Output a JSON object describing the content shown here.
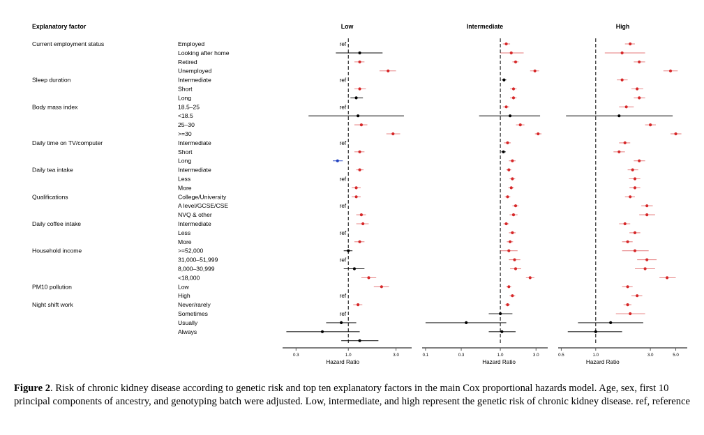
{
  "caption": {
    "label": "Figure 2",
    "text": ". Risk of chronic kidney disease according to genetic risk and top ten explanatory factors in the main Cox proportional hazards model. Age, sex, first 10 principal components of ancestry, and genotyping batch were adjusted. Low, intermediate, and high represent the genetic risk of chronic kidney disease. ref, reference"
  },
  "chart_data": {
    "type": "forest",
    "header": "Explanatory factor",
    "ref_label": "ref",
    "xlabel": "Hazard Ratio",
    "reference_value": 1.0,
    "x_scale": "log",
    "colors": {
      "significant_increase": "#d62728",
      "significant_decrease": "#1f3fbf",
      "not_significant": "#000000"
    },
    "groups": [
      {
        "factor": "Current employment status",
        "levels": [
          "Employed",
          "Looking after home",
          "Retired",
          "Unemployed"
        ]
      },
      {
        "factor": "Sleep duration",
        "levels": [
          "Intermediate",
          "Short",
          "Long"
        ]
      },
      {
        "factor": "Body mass index",
        "levels": [
          "18.5–25",
          "<18.5",
          "25–30",
          ">=30"
        ]
      },
      {
        "factor": "Daily time on TV/computer",
        "levels": [
          "Intermediate",
          "Short",
          "Long"
        ]
      },
      {
        "factor": "Daily tea intake",
        "levels": [
          "Intermediate",
          "Less",
          "More"
        ]
      },
      {
        "factor": "Qualifications",
        "levels": [
          "College/University",
          "A level/GCSE/CSE",
          "NVQ & other"
        ]
      },
      {
        "factor": "Daily coffee intake",
        "levels": [
          "Intermediate",
          "Less",
          "More"
        ]
      },
      {
        "factor": "Household income",
        "levels": [
          ">=52,000",
          "31,000–51,999",
          "8,000–30,999",
          "<18,000"
        ]
      },
      {
        "factor": "PM10 pollution",
        "levels": [
          "Low",
          "High"
        ]
      },
      {
        "factor": "Night shift work",
        "levels": [
          "Never/rarely",
          "Sometimes",
          "Usually",
          "Always"
        ]
      }
    ],
    "panels": [
      {
        "title": "Low",
        "xlim": [
          0.22,
          4.3
        ],
        "ticks": [
          0.3,
          1.0,
          3.0
        ],
        "tick_labels": [
          "0.3",
          "1.0",
          "3.0"
        ],
        "rows": [
          {
            "ref": true
          },
          {
            "hr": 1.3,
            "lo": 0.75,
            "hi": 2.2,
            "sig": "none"
          },
          {
            "hr": 1.3,
            "lo": 1.15,
            "hi": 1.45,
            "sig": "up"
          },
          {
            "hr": 2.5,
            "lo": 2.05,
            "hi": 3.0,
            "sig": "up"
          },
          {
            "ref": true
          },
          {
            "hr": 1.3,
            "lo": 1.15,
            "hi": 1.5,
            "sig": "up"
          },
          {
            "hr": 1.2,
            "lo": 1.05,
            "hi": 1.4,
            "sig": "none"
          },
          {
            "ref": true
          },
          {
            "hr": 1.25,
            "lo": 0.4,
            "hi": 3.6,
            "sig": "none"
          },
          {
            "hr": 1.35,
            "lo": 1.15,
            "hi": 1.55,
            "sig": "up"
          },
          {
            "hr": 2.8,
            "lo": 2.4,
            "hi": 3.3,
            "sig": "up"
          },
          {
            "ref": true
          },
          {
            "hr": 1.3,
            "lo": 1.15,
            "hi": 1.45,
            "sig": "up"
          },
          {
            "hr": 0.78,
            "lo": 0.7,
            "hi": 0.88,
            "sig": "down"
          },
          {
            "hr": 1.3,
            "lo": 1.2,
            "hi": 1.42,
            "sig": "up"
          },
          {
            "ref": true
          },
          {
            "hr": 1.2,
            "lo": 1.08,
            "hi": 1.33,
            "sig": "up"
          },
          {
            "hr": 1.2,
            "lo": 1.08,
            "hi": 1.33,
            "sig": "up"
          },
          {
            "ref": true
          },
          {
            "hr": 1.35,
            "lo": 1.2,
            "hi": 1.5,
            "sig": "up"
          },
          {
            "hr": 1.4,
            "lo": 1.2,
            "hi": 1.6,
            "sig": "up"
          },
          {
            "ref": true
          },
          {
            "hr": 1.3,
            "lo": 1.15,
            "hi": 1.45,
            "sig": "up"
          },
          {
            "hr": 1.0,
            "lo": 0.9,
            "hi": 1.1,
            "sig": "none"
          },
          {
            "ref": true
          },
          {
            "hr": 1.15,
            "lo": 0.9,
            "hi": 1.45,
            "sig": "none"
          },
          {
            "hr": 1.6,
            "lo": 1.35,
            "hi": 1.9,
            "sig": "up"
          },
          {
            "hr": 2.15,
            "lo": 1.8,
            "hi": 2.55,
            "sig": "up"
          },
          {
            "ref": true
          },
          {
            "hr": 1.25,
            "lo": 1.12,
            "hi": 1.38,
            "sig": "up"
          },
          {
            "ref": true
          },
          {
            "hr": 0.85,
            "lo": 0.6,
            "hi": 1.2,
            "sig": "none"
          },
          {
            "hr": 0.55,
            "lo": 0.24,
            "hi": 1.3,
            "sig": "none"
          },
          {
            "hr": 1.3,
            "lo": 0.85,
            "hi": 2.0,
            "sig": "none"
          }
        ]
      },
      {
        "title": "Intermediate",
        "xlim": [
          0.09,
          4.3
        ],
        "ticks": [
          0.1,
          0.3,
          1.0,
          3.0
        ],
        "tick_labels": [
          "0.1",
          "0.3",
          "1.0",
          "3.0"
        ],
        "rows": [
          {
            "hr": 1.2,
            "lo": 1.08,
            "hi": 1.35,
            "sig": "up"
          },
          {
            "hr": 1.4,
            "lo": 1.0,
            "hi": 2.05,
            "sig": "up"
          },
          {
            "hr": 1.6,
            "lo": 1.45,
            "hi": 1.75,
            "sig": "up"
          },
          {
            "hr": 2.9,
            "lo": 2.5,
            "hi": 3.3,
            "sig": "up"
          },
          {
            "hr": 1.12,
            "lo": 1.05,
            "hi": 1.2,
            "sig": "none"
          },
          {
            "hr": 1.5,
            "lo": 1.35,
            "hi": 1.65,
            "sig": "up"
          },
          {
            "hr": 1.5,
            "lo": 1.35,
            "hi": 1.65,
            "sig": "up"
          },
          {
            "hr": 1.2,
            "lo": 1.08,
            "hi": 1.32,
            "sig": "up"
          },
          {
            "hr": 1.35,
            "lo": 0.52,
            "hi": 3.4,
            "sig": "none"
          },
          {
            "hr": 1.85,
            "lo": 1.62,
            "hi": 2.1,
            "sig": "up"
          },
          {
            "hr": 3.2,
            "lo": 2.9,
            "hi": 3.55,
            "sig": "up"
          },
          {
            "hr": 1.25,
            "lo": 1.12,
            "hi": 1.38,
            "sig": "up"
          },
          {
            "hr": 1.1,
            "lo": 1.03,
            "hi": 1.18,
            "sig": "none"
          },
          {
            "hr": 1.45,
            "lo": 1.3,
            "hi": 1.6,
            "sig": "up"
          },
          {
            "hr": 1.3,
            "lo": 1.2,
            "hi": 1.4,
            "sig": "up"
          },
          {
            "hr": 1.45,
            "lo": 1.33,
            "hi": 1.58,
            "sig": "up"
          },
          {
            "hr": 1.4,
            "lo": 1.28,
            "hi": 1.52,
            "sig": "up"
          },
          {
            "hr": 1.25,
            "lo": 1.15,
            "hi": 1.36,
            "sig": "up"
          },
          {
            "hr": 1.6,
            "lo": 1.45,
            "hi": 1.75,
            "sig": "up"
          },
          {
            "hr": 1.5,
            "lo": 1.33,
            "hi": 1.7,
            "sig": "up"
          },
          {
            "hr": 1.2,
            "lo": 1.1,
            "hi": 1.3,
            "sig": "up"
          },
          {
            "hr": 1.45,
            "lo": 1.3,
            "hi": 1.6,
            "sig": "up"
          },
          {
            "hr": 1.35,
            "lo": 1.22,
            "hi": 1.48,
            "sig": "up"
          },
          {
            "hr": 1.3,
            "lo": 1.0,
            "hi": 1.7,
            "sig": "up"
          },
          {
            "hr": 1.55,
            "lo": 1.3,
            "hi": 1.85,
            "sig": "up"
          },
          {
            "hr": 1.6,
            "lo": 1.35,
            "hi": 1.9,
            "sig": "up"
          },
          {
            "hr": 2.5,
            "lo": 2.2,
            "hi": 2.85,
            "sig": "up"
          },
          {
            "hr": 1.3,
            "lo": 1.2,
            "hi": 1.4,
            "sig": "up"
          },
          {
            "hr": 1.45,
            "lo": 1.33,
            "hi": 1.58,
            "sig": "up"
          },
          {
            "hr": 1.25,
            "lo": 1.15,
            "hi": 1.35,
            "sig": "up"
          },
          {
            "hr": 1.0,
            "lo": 0.7,
            "hi": 1.45,
            "sig": "none"
          },
          {
            "hr": 0.35,
            "lo": 0.1,
            "hi": 1.2,
            "sig": "none"
          },
          {
            "hr": 1.05,
            "lo": 0.7,
            "hi": 1.6,
            "sig": "none"
          }
        ]
      },
      {
        "title": "High",
        "xlim": [
          0.47,
          6.3
        ],
        "ticks": [
          0.5,
          1.0,
          3.0,
          5.0
        ],
        "tick_labels": [
          "0.5",
          "1.0",
          "3.0",
          "5.0"
        ],
        "rows": [
          {
            "hr": 2.0,
            "lo": 1.8,
            "hi": 2.2,
            "sig": "up"
          },
          {
            "hr": 1.7,
            "lo": 1.2,
            "hi": 2.7,
            "sig": "up"
          },
          {
            "hr": 2.4,
            "lo": 2.15,
            "hi": 2.7,
            "sig": "up"
          },
          {
            "hr": 4.5,
            "lo": 3.9,
            "hi": 5.2,
            "sig": "up"
          },
          {
            "hr": 1.7,
            "lo": 1.53,
            "hi": 1.9,
            "sig": "up"
          },
          {
            "hr": 2.3,
            "lo": 2.05,
            "hi": 2.6,
            "sig": "up"
          },
          {
            "hr": 2.4,
            "lo": 2.15,
            "hi": 2.7,
            "sig": "up"
          },
          {
            "hr": 1.85,
            "lo": 1.6,
            "hi": 2.15,
            "sig": "up"
          },
          {
            "hr": 1.6,
            "lo": 0.55,
            "hi": 4.7,
            "sig": "none"
          },
          {
            "hr": 3.0,
            "lo": 2.7,
            "hi": 3.35,
            "sig": "up"
          },
          {
            "hr": 5.0,
            "lo": 4.5,
            "hi": 5.6,
            "sig": "up"
          },
          {
            "hr": 1.8,
            "lo": 1.6,
            "hi": 2.0,
            "sig": "up"
          },
          {
            "hr": 1.6,
            "lo": 1.43,
            "hi": 1.8,
            "sig": "up"
          },
          {
            "hr": 2.4,
            "lo": 2.15,
            "hi": 2.7,
            "sig": "up"
          },
          {
            "hr": 2.1,
            "lo": 1.9,
            "hi": 2.35,
            "sig": "up"
          },
          {
            "hr": 2.2,
            "lo": 1.95,
            "hi": 2.45,
            "sig": "up"
          },
          {
            "hr": 2.2,
            "lo": 1.97,
            "hi": 2.45,
            "sig": "up"
          },
          {
            "hr": 2.0,
            "lo": 1.8,
            "hi": 2.2,
            "sig": "up"
          },
          {
            "hr": 2.8,
            "lo": 2.5,
            "hi": 3.15,
            "sig": "up"
          },
          {
            "hr": 2.8,
            "lo": 2.4,
            "hi": 3.3,
            "sig": "up"
          },
          {
            "hr": 1.8,
            "lo": 1.6,
            "hi": 2.0,
            "sig": "up"
          },
          {
            "hr": 2.2,
            "lo": 1.97,
            "hi": 2.45,
            "sig": "up"
          },
          {
            "hr": 1.9,
            "lo": 1.7,
            "hi": 2.1,
            "sig": "up"
          },
          {
            "hr": 2.2,
            "lo": 1.7,
            "hi": 2.9,
            "sig": "up"
          },
          {
            "hr": 2.8,
            "lo": 2.3,
            "hi": 3.4,
            "sig": "up"
          },
          {
            "hr": 2.7,
            "lo": 2.2,
            "hi": 3.3,
            "sig": "up"
          },
          {
            "hr": 4.2,
            "lo": 3.6,
            "hi": 5.0,
            "sig": "up"
          },
          {
            "hr": 1.9,
            "lo": 1.7,
            "hi": 2.1,
            "sig": "up"
          },
          {
            "hr": 2.3,
            "lo": 2.05,
            "hi": 2.55,
            "sig": "up"
          },
          {
            "hr": 1.9,
            "lo": 1.75,
            "hi": 2.05,
            "sig": "up"
          },
          {
            "hr": 2.0,
            "lo": 1.5,
            "hi": 2.7,
            "sig": "up"
          },
          {
            "hr": 1.35,
            "lo": 0.7,
            "hi": 2.6,
            "sig": "none"
          },
          {
            "hr": 1.0,
            "lo": 0.57,
            "hi": 1.7,
            "sig": "none"
          }
        ]
      }
    ]
  }
}
